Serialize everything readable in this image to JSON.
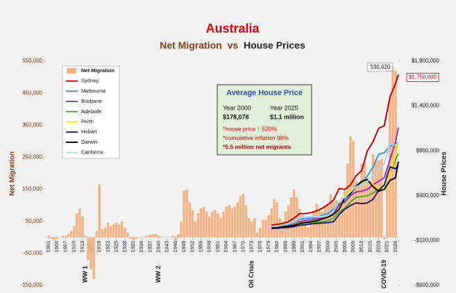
{
  "chart_data": {
    "type": "bar",
    "title": "Australia",
    "subtitle": [
      "Net Migration",
      "vs",
      "House Prices"
    ],
    "y_label": "Net Migration",
    "y2_label": "House Prices",
    "xlim": [
      1900,
      2025
    ],
    "xticks": [
      1901,
      1904,
      1907,
      1910,
      1913,
      1916,
      1919,
      1922,
      1925,
      1928,
      1931,
      1934,
      1937,
      1940,
      1943,
      1946,
      1949,
      1952,
      1955,
      1958,
      1961,
      1964,
      1967,
      1970,
      1973,
      1976,
      1979,
      1982,
      1985,
      1988,
      1991,
      1994,
      1997,
      2000,
      2003,
      2006,
      2009,
      2012,
      2015,
      2018,
      2021,
      2024
    ],
    "ylim": [
      -150000,
      550000
    ],
    "yticks": [
      {
        "value": 550000,
        "label": "550,000"
      },
      {
        "value": 450000,
        "label": "450,000"
      },
      {
        "value": 350000,
        "label": "350,000"
      },
      {
        "value": 250000,
        "label": "250,000"
      },
      {
        "value": 150000,
        "label": "150,000"
      },
      {
        "value": 50000,
        "label": "50,000"
      },
      {
        "value": -50000,
        "label": "-50,000"
      },
      {
        "value": -150000,
        "label": "-150,000"
      }
    ],
    "y2lim": [
      -600000,
      1900000
    ],
    "y2ticks": [
      {
        "value": 1900000,
        "label": "$1,900,000"
      },
      {
        "value": 1400000,
        "label": "$1,400,000"
      },
      {
        "value": 900000,
        "label": "$900,000"
      },
      {
        "value": 400000,
        "label": "$400,000"
      },
      {
        "value": -100000,
        "label": "-$100,000"
      },
      {
        "value": -600000,
        "label": "-$600,000"
      }
    ],
    "series": [
      {
        "name": "Net Migration",
        "type": "bar",
        "color": "#f4b183",
        "x": [
          1901,
          1902,
          1903,
          1904,
          1905,
          1906,
          1907,
          1908,
          1909,
          1910,
          1911,
          1912,
          1913,
          1914,
          1915,
          1916,
          1917,
          1918,
          1919,
          1920,
          1921,
          1922,
          1923,
          1924,
          1925,
          1926,
          1927,
          1928,
          1929,
          1930,
          1931,
          1932,
          1933,
          1934,
          1935,
          1936,
          1937,
          1938,
          1939,
          1940,
          1941,
          1942,
          1943,
          1944,
          1945,
          1946,
          1947,
          1948,
          1949,
          1950,
          1951,
          1952,
          1953,
          1954,
          1955,
          1956,
          1957,
          1958,
          1959,
          1960,
          1961,
          1962,
          1963,
          1964,
          1965,
          1966,
          1967,
          1968,
          1969,
          1970,
          1971,
          1972,
          1973,
          1974,
          1975,
          1976,
          1977,
          1978,
          1979,
          1980,
          1981,
          1982,
          1983,
          1984,
          1985,
          1986,
          1987,
          1988,
          1989,
          1990,
          1991,
          1992,
          1993,
          1994,
          1995,
          1996,
          1997,
          1998,
          1999,
          2000,
          2001,
          2002,
          2003,
          2004,
          2005,
          2006,
          2007,
          2008,
          2009,
          2010,
          2011,
          2012,
          2013,
          2014,
          2015,
          2016,
          2017,
          2018,
          2019,
          2020,
          2021,
          2022,
          2023,
          2024
        ],
        "values": [
          5000,
          -5000,
          -10000,
          -5000,
          0,
          5000,
          5000,
          10000,
          20000,
          35000,
          75000,
          90000,
          65000,
          5000,
          -70000,
          -100000,
          -130000,
          20000,
          165000,
          25000,
          30000,
          45000,
          35000,
          40000,
          45000,
          40000,
          50000,
          30000,
          15000,
          -5000,
          -10000,
          -5000,
          0,
          0,
          2000,
          5000,
          8000,
          10000,
          10000,
          5000,
          2000,
          0,
          0,
          0,
          5000,
          -10000,
          10000,
          50000,
          145000,
          150000,
          110000,
          85000,
          50000,
          75000,
          90000,
          95000,
          80000,
          65000,
          80000,
          85000,
          75000,
          60000,
          80000,
          95000,
          100000,
          90000,
          95000,
          110000,
          130000,
          135000,
          100000,
          60000,
          50000,
          60000,
          15000,
          30000,
          55000,
          55000,
          70000,
          90000,
          120000,
          110000,
          60000,
          50000,
          80000,
          100000,
          125000,
          150000,
          125000,
          90000,
          70000,
          40000,
          30000,
          45000,
          80000,
          105000,
          90000,
          80000,
          95000,
          105000,
          135000,
          110000,
          115000,
          105000,
          125000,
          145000,
          230000,
          315000,
          300000,
          175000,
          170000,
          230000,
          235000,
          185000,
          175000,
          260000,
          245000,
          240000,
          245000,
          -5000,
          200000,
          435000,
          530620,
          520000
        ],
        "value_labels": [
          null,
          null,
          null,
          null,
          null,
          null,
          null,
          null,
          null,
          null,
          null,
          null,
          null,
          null,
          null,
          null,
          null,
          null,
          null,
          null,
          null,
          null,
          null,
          null,
          null,
          null,
          null,
          null,
          null,
          null,
          null,
          null,
          null,
          null,
          null,
          null,
          null,
          null,
          null,
          null,
          null,
          null,
          null,
          null,
          null,
          null,
          null,
          null,
          null,
          null,
          null,
          null,
          null,
          null,
          null,
          null,
          null,
          null,
          null,
          null,
          null,
          null,
          null,
          null,
          null,
          null,
          null,
          null,
          null,
          null,
          null,
          null,
          null,
          null,
          null,
          null,
          null,
          null,
          null,
          null,
          null,
          null,
          null,
          null,
          null,
          null,
          null,
          null,
          null,
          null,
          null,
          null,
          null,
          null,
          null,
          null,
          null,
          null,
          null,
          null,
          null,
          null,
          null,
          null,
          null,
          null,
          null,
          null,
          null,
          null,
          null,
          null,
          null,
          null,
          null,
          null,
          null,
          null,
          null,
          null,
          null,
          null,
          "530,620",
          null
        ]
      },
      {
        "name": "Sydney",
        "type": "line",
        "axis": "y2",
        "color": "#c00000",
        "x": [
          1980,
          1982,
          1984,
          1986,
          1988,
          1990,
          1992,
          1994,
          1996,
          1998,
          2000,
          2002,
          2004,
          2006,
          2008,
          2010,
          2012,
          2014,
          2016,
          2018,
          2020,
          2022,
          2024,
          2025
        ],
        "values": [
          70000,
          80000,
          90000,
          110000,
          150000,
          200000,
          200000,
          210000,
          230000,
          260000,
          300000,
          350000,
          480000,
          470000,
          520000,
          620000,
          680000,
          900000,
          1000000,
          1150000,
          1180000,
          1500000,
          1650000,
          1750000
        ],
        "value_labels": [
          null,
          null,
          null,
          null,
          null,
          null,
          null,
          null,
          null,
          null,
          null,
          null,
          null,
          null,
          null,
          null,
          null,
          null,
          null,
          null,
          null,
          null,
          null,
          "$1,750,000"
        ]
      },
      {
        "name": "Melbourne",
        "type": "line",
        "axis": "y2",
        "color": "#2e9bd6",
        "x": [
          1980,
          1982,
          1984,
          1986,
          1988,
          1990,
          1992,
          1994,
          1996,
          1998,
          2000,
          2002,
          2004,
          2006,
          2008,
          2010,
          2012,
          2014,
          2016,
          2018,
          2020,
          2022,
          2024,
          2025
        ],
        "values": [
          50000,
          55000,
          60000,
          75000,
          100000,
          140000,
          140000,
          150000,
          160000,
          180000,
          200000,
          250000,
          310000,
          340000,
          420000,
          520000,
          540000,
          620000,
          720000,
          860000,
          880000,
          950000,
          980000,
          1000000
        ]
      },
      {
        "name": "Brisbane",
        "type": "line",
        "axis": "y2",
        "color": "#9b2fae",
        "x": [
          1980,
          1982,
          1984,
          1986,
          1988,
          1990,
          1992,
          1994,
          1996,
          1998,
          2000,
          2002,
          2004,
          2006,
          2008,
          2010,
          2012,
          2014,
          2016,
          2018,
          2020,
          2022,
          2024,
          2025
        ],
        "values": [
          40000,
          45000,
          50000,
          60000,
          80000,
          110000,
          120000,
          130000,
          140000,
          150000,
          160000,
          200000,
          300000,
          330000,
          400000,
          440000,
          450000,
          470000,
          520000,
          560000,
          600000,
          800000,
          1000000,
          1160000
        ]
      },
      {
        "name": "Adelaide",
        "type": "line",
        "axis": "y2",
        "color": "#4ea72e",
        "x": [
          1980,
          1982,
          1984,
          1986,
          1988,
          1990,
          1992,
          1994,
          1996,
          1998,
          2000,
          2002,
          2004,
          2006,
          2008,
          2010,
          2012,
          2014,
          2016,
          2018,
          2020,
          2022,
          2024,
          2025
        ],
        "values": [
          40000,
          45000,
          50000,
          60000,
          70000,
          90000,
          95000,
          100000,
          105000,
          110000,
          120000,
          150000,
          220000,
          260000,
          330000,
          380000,
          390000,
          400000,
          430000,
          470000,
          500000,
          650000,
          800000,
          870000
        ]
      },
      {
        "name": "Perth",
        "type": "line",
        "axis": "y2",
        "color": "#f2e600",
        "x": [
          1980,
          1982,
          1984,
          1986,
          1988,
          1990,
          1992,
          1994,
          1996,
          1998,
          2000,
          2002,
          2004,
          2006,
          2008,
          2010,
          2012,
          2014,
          2016,
          2018,
          2020,
          2022,
          2024,
          2025
        ],
        "values": [
          40000,
          45000,
          50000,
          55000,
          75000,
          95000,
          100000,
          110000,
          120000,
          140000,
          160000,
          190000,
          250000,
          400000,
          460000,
          500000,
          530000,
          560000,
          520000,
          480000,
          500000,
          650000,
          850000,
          1000000
        ]
      },
      {
        "name": "Hobart",
        "type": "line",
        "axis": "y2",
        "color": "#1f1f6b",
        "x": [
          1980,
          1982,
          1984,
          1986,
          1988,
          1990,
          1992,
          1994,
          1996,
          1998,
          2000,
          2002,
          2004,
          2006,
          2008,
          2010,
          2012,
          2014,
          2016,
          2018,
          2020,
          2022,
          2024,
          2025
        ],
        "values": [
          35000,
          38000,
          42000,
          45000,
          55000,
          70000,
          75000,
          85000,
          90000,
          95000,
          100000,
          110000,
          190000,
          250000,
          290000,
          320000,
          310000,
          320000,
          360000,
          460000,
          520000,
          720000,
          700000,
          740000
        ]
      },
      {
        "name": "Darwin",
        "type": "line",
        "axis": "y2",
        "color": "#000000",
        "x": [
          1980,
          1982,
          1984,
          1986,
          1988,
          1990,
          1992,
          1994,
          1996,
          1998,
          2000,
          2002,
          2004,
          2006,
          2008,
          2010,
          2012,
          2014,
          2016,
          2018,
          2020,
          2022,
          2024,
          2025
        ],
        "values": [
          40000,
          45000,
          55000,
          60000,
          70000,
          90000,
          100000,
          110000,
          120000,
          140000,
          160000,
          190000,
          250000,
          380000,
          420000,
          500000,
          560000,
          580000,
          500000,
          450000,
          470000,
          570000,
          600000,
          780000
        ]
      },
      {
        "name": "Canberra",
        "type": "line",
        "axis": "y2",
        "color": "#a6d8f0",
        "x": [
          1980,
          1982,
          1984,
          1986,
          1988,
          1990,
          1992,
          1994,
          1996,
          1998,
          2000,
          2002,
          2004,
          2006,
          2008,
          2010,
          2012,
          2014,
          2016,
          2018,
          2020,
          2022,
          2024,
          2025
        ],
        "values": [
          55000,
          60000,
          70000,
          85000,
          110000,
          150000,
          160000,
          165000,
          165000,
          170000,
          180000,
          230000,
          340000,
          380000,
          440000,
          500000,
          520000,
          560000,
          620000,
          700000,
          760000,
          980000,
          960000,
          1000000
        ]
      }
    ],
    "annotations": [
      {
        "text": "WW 1",
        "x": 1914
      },
      {
        "text": "WW 2",
        "x": 1940
      },
      {
        "text": "Oil Crisis",
        "x": 1973
      },
      {
        "text": "COVID-19",
        "x": 2020
      }
    ],
    "info_box": {
      "title": "Average House Price",
      "columns": [
        {
          "year": "Year 2000",
          "price": "$178,078"
        },
        {
          "year": "Year 2025",
          "price": "$1.1 million"
        }
      ],
      "notes": [
        "*house price ↑ 520%",
        "*cumulative inflation 98%",
        "*5.5 million net migrants"
      ]
    }
  }
}
